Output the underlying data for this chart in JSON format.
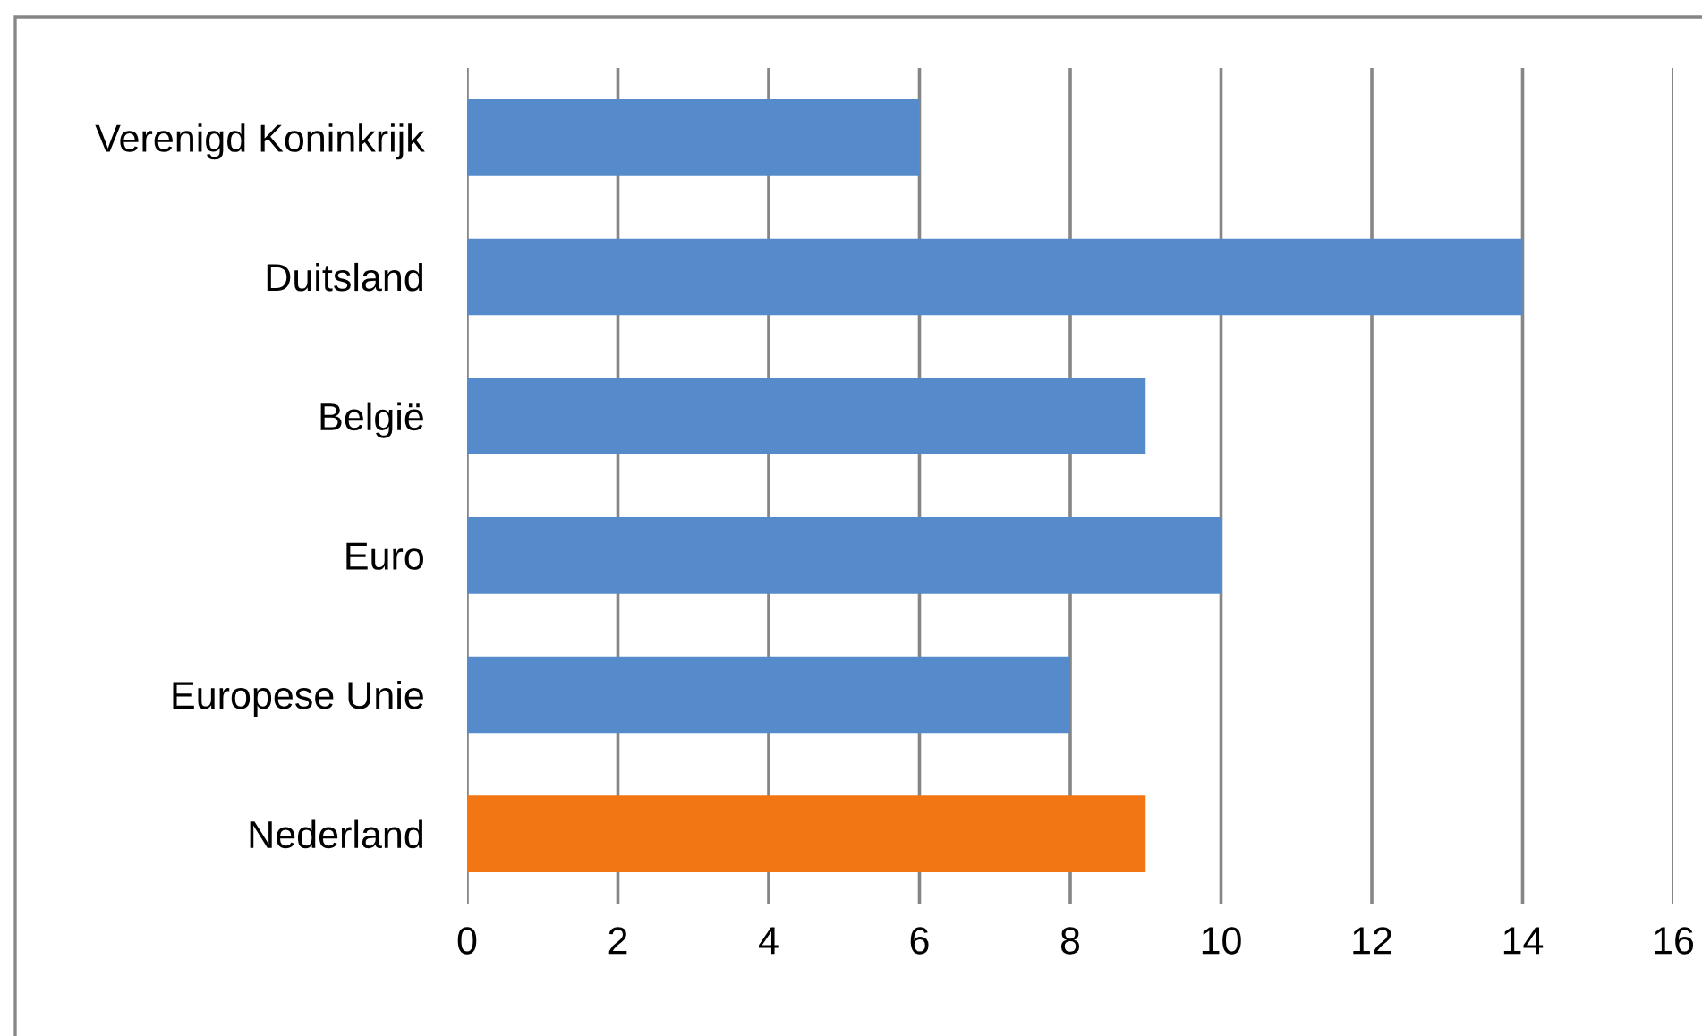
{
  "chart_data": {
    "type": "bar",
    "orientation": "horizontal",
    "categories": [
      "Verenigd Koninkrijk",
      "Duitsland",
      "België",
      "Euro",
      "Europese Unie",
      "Nederland"
    ],
    "values": [
      6,
      14,
      9,
      10,
      8,
      9
    ],
    "colors": [
      "#568bcb",
      "#568bcb",
      "#568bcb",
      "#568bcb",
      "#568bcb",
      "#f27613"
    ],
    "xlim": [
      0,
      16
    ],
    "xticks": [
      0,
      2,
      4,
      6,
      8,
      10,
      12,
      14,
      16
    ],
    "grid": "x",
    "legend": false
  }
}
